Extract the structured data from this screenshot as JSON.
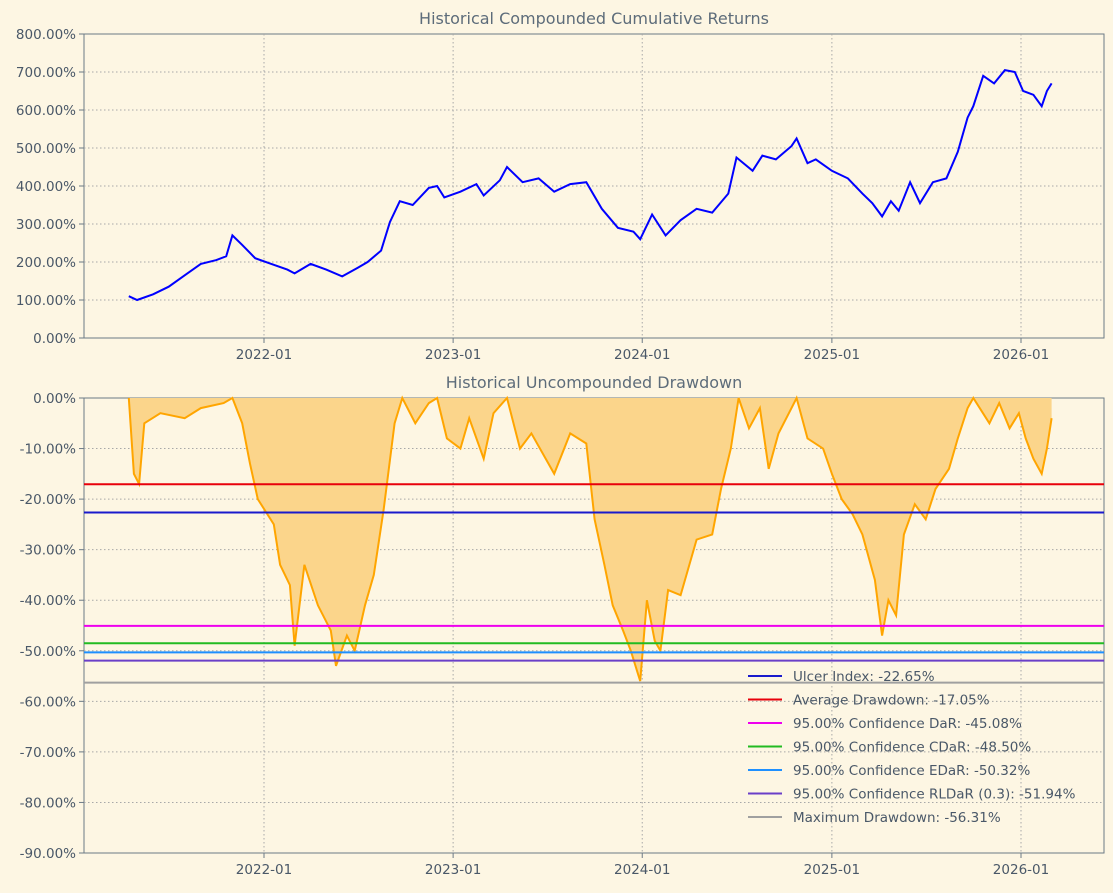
{
  "chart_data": [
    {
      "type": "line",
      "title": "Historical Compounded Cumulative Returns",
      "xlabel": "",
      "ylabel": "",
      "x_ticks": [
        "2022-01",
        "2023-01",
        "2024-01",
        "2025-01",
        "2026-01"
      ],
      "y_ticks": [
        "0.00%",
        "100.00%",
        "200.00%",
        "300.00%",
        "400.00%",
        "500.00%",
        "600.00%",
        "700.00%",
        "800.00%"
      ],
      "ylim": [
        0,
        800
      ],
      "grid": true,
      "series": [
        {
          "name": "Cumulative Returns",
          "color": "#0000ff",
          "points": [
            [
              "2021-04-15",
              110
            ],
            [
              "2021-05-01",
              100
            ],
            [
              "2021-06-01",
              115
            ],
            [
              "2021-07-01",
              135
            ],
            [
              "2021-08-01",
              165
            ],
            [
              "2021-09-01",
              195
            ],
            [
              "2021-10-01",
              205
            ],
            [
              "2021-10-20",
              215
            ],
            [
              "2021-11-01",
              270
            ],
            [
              "2021-11-20",
              245
            ],
            [
              "2021-12-15",
              210
            ],
            [
              "2022-01-15",
              195
            ],
            [
              "2022-02-15",
              180
            ],
            [
              "2022-03-01",
              170
            ],
            [
              "2022-04-01",
              195
            ],
            [
              "2022-05-01",
              180
            ],
            [
              "2022-06-01",
              162
            ],
            [
              "2022-07-01",
              185
            ],
            [
              "2022-07-20",
              200
            ],
            [
              "2022-08-15",
              230
            ],
            [
              "2022-09-01",
              305
            ],
            [
              "2022-09-20",
              360
            ],
            [
              "2022-10-15",
              350
            ],
            [
              "2022-11-15",
              395
            ],
            [
              "2022-12-01",
              400
            ],
            [
              "2022-12-15",
              370
            ],
            [
              "2023-01-15",
              385
            ],
            [
              "2023-02-15",
              405
            ],
            [
              "2023-03-01",
              375
            ],
            [
              "2023-04-01",
              415
            ],
            [
              "2023-04-15",
              450
            ],
            [
              "2023-05-15",
              410
            ],
            [
              "2023-06-15",
              420
            ],
            [
              "2023-07-15",
              385
            ],
            [
              "2023-08-15",
              405
            ],
            [
              "2023-09-15",
              410
            ],
            [
              "2023-10-15",
              340
            ],
            [
              "2023-11-15",
              290
            ],
            [
              "2023-12-15",
              280
            ],
            [
              "2023-12-28",
              260
            ],
            [
              "2024-01-20",
              325
            ],
            [
              "2024-02-15",
              270
            ],
            [
              "2024-03-15",
              310
            ],
            [
              "2024-04-15",
              340
            ],
            [
              "2024-05-15",
              330
            ],
            [
              "2024-06-15",
              380
            ],
            [
              "2024-07-01",
              475
            ],
            [
              "2024-08-01",
              440
            ],
            [
              "2024-08-20",
              480
            ],
            [
              "2024-09-15",
              470
            ],
            [
              "2024-10-15",
              505
            ],
            [
              "2024-10-25",
              525
            ],
            [
              "2024-11-15",
              460
            ],
            [
              "2024-12-01",
              470
            ],
            [
              "2025-01-01",
              440
            ],
            [
              "2025-02-01",
              420
            ],
            [
              "2025-03-01",
              380
            ],
            [
              "2025-03-20",
              355
            ],
            [
              "2025-04-08",
              320
            ],
            [
              "2025-04-25",
              360
            ],
            [
              "2025-05-10",
              335
            ],
            [
              "2025-06-01",
              410
            ],
            [
              "2025-06-20",
              355
            ],
            [
              "2025-07-15",
              410
            ],
            [
              "2025-08-10",
              420
            ],
            [
              "2025-09-01",
              490
            ],
            [
              "2025-09-20",
              580
            ],
            [
              "2025-10-01",
              610
            ],
            [
              "2025-10-20",
              690
            ],
            [
              "2025-11-10",
              670
            ],
            [
              "2025-12-01",
              705
            ],
            [
              "2025-12-20",
              700
            ],
            [
              "2026-01-05",
              650
            ],
            [
              "2026-01-25",
              640
            ],
            [
              "2026-02-10",
              610
            ],
            [
              "2026-02-20",
              650
            ],
            [
              "2026-03-01",
              670
            ]
          ]
        }
      ]
    },
    {
      "type": "area",
      "title": "Historical Uncompounded Drawdown",
      "xlabel": "",
      "ylabel": "",
      "x_ticks": [
        "2022-01",
        "2023-01",
        "2024-01",
        "2025-01",
        "2026-01"
      ],
      "y_ticks": [
        "0.00%",
        "-10.00%",
        "-20.00%",
        "-30.00%",
        "-40.00%",
        "-50.00%",
        "-60.00%",
        "-70.00%",
        "-80.00%",
        "-90.00%"
      ],
      "ylim": [
        -90,
        0
      ],
      "grid": true,
      "legend_position": "lower-right",
      "series": [
        {
          "name": "Drawdown",
          "color": "#ffa500",
          "fill": "#fbd58b",
          "points": [
            [
              "2021-04-15",
              0
            ],
            [
              "2021-04-25",
              -15
            ],
            [
              "2021-05-05",
              -17
            ],
            [
              "2021-05-15",
              -5
            ],
            [
              "2021-06-15",
              -3
            ],
            [
              "2021-08-01",
              -4
            ],
            [
              "2021-09-01",
              -2
            ],
            [
              "2021-10-15",
              -1
            ],
            [
              "2021-11-01",
              0
            ],
            [
              "2021-11-20",
              -5
            ],
            [
              "2021-12-05",
              -13
            ],
            [
              "2021-12-20",
              -20
            ],
            [
              "2022-01-20",
              -25
            ],
            [
              "2022-02-01",
              -33
            ],
            [
              "2022-02-20",
              -37
            ],
            [
              "2022-03-01",
              -49
            ],
            [
              "2022-03-20",
              -33
            ],
            [
              "2022-04-15",
              -41
            ],
            [
              "2022-05-10",
              -46
            ],
            [
              "2022-05-20",
              -53
            ],
            [
              "2022-06-10",
              -47
            ],
            [
              "2022-06-25",
              -50
            ],
            [
              "2022-07-15",
              -41
            ],
            [
              "2022-08-01",
              -35
            ],
            [
              "2022-08-20",
              -22
            ],
            [
              "2022-09-10",
              -5
            ],
            [
              "2022-09-25",
              0
            ],
            [
              "2022-10-20",
              -5
            ],
            [
              "2022-11-15",
              -1
            ],
            [
              "2022-12-01",
              0
            ],
            [
              "2022-12-20",
              -8
            ],
            [
              "2023-01-15",
              -10
            ],
            [
              "2023-02-01",
              -4
            ],
            [
              "2023-03-01",
              -12
            ],
            [
              "2023-03-20",
              -3
            ],
            [
              "2023-04-15",
              0
            ],
            [
              "2023-05-10",
              -10
            ],
            [
              "2023-06-01",
              -7
            ],
            [
              "2023-07-15",
              -15
            ],
            [
              "2023-08-15",
              -7
            ],
            [
              "2023-09-15",
              -9
            ],
            [
              "2023-10-01",
              -24
            ],
            [
              "2023-10-20",
              -33
            ],
            [
              "2023-11-05",
              -41
            ],
            [
              "2023-11-25",
              -46
            ],
            [
              "2023-12-10",
              -50
            ],
            [
              "2023-12-28",
              -56
            ],
            [
              "2024-01-10",
              -40
            ],
            [
              "2024-01-25",
              -48
            ],
            [
              "2024-02-05",
              -50
            ],
            [
              "2024-02-20",
              -38
            ],
            [
              "2024-03-15",
              -39
            ],
            [
              "2024-04-15",
              -28
            ],
            [
              "2024-05-15",
              -27
            ],
            [
              "2024-06-01",
              -18
            ],
            [
              "2024-06-20",
              -10
            ],
            [
              "2024-07-05",
              0
            ],
            [
              "2024-07-25",
              -6
            ],
            [
              "2024-08-15",
              -2
            ],
            [
              "2024-09-01",
              -14
            ],
            [
              "2024-09-20",
              -7
            ],
            [
              "2024-10-15",
              -2
            ],
            [
              "2024-10-25",
              0
            ],
            [
              "2024-11-15",
              -8
            ],
            [
              "2024-12-15",
              -10
            ],
            [
              "2025-01-01",
              -15
            ],
            [
              "2025-01-20",
              -20
            ],
            [
              "2025-02-10",
              -23
            ],
            [
              "2025-03-01",
              -27
            ],
            [
              "2025-03-25",
              -36
            ],
            [
              "2025-04-08",
              -47
            ],
            [
              "2025-04-20",
              -40
            ],
            [
              "2025-05-05",
              -43
            ],
            [
              "2025-05-20",
              -27
            ],
            [
              "2025-06-10",
              -21
            ],
            [
              "2025-07-01",
              -24
            ],
            [
              "2025-07-20",
              -18
            ],
            [
              "2025-08-15",
              -14
            ],
            [
              "2025-09-01",
              -8
            ],
            [
              "2025-09-20",
              -2
            ],
            [
              "2025-10-01",
              0
            ],
            [
              "2025-11-01",
              -5
            ],
            [
              "2025-11-20",
              -1
            ],
            [
              "2025-12-10",
              -6
            ],
            [
              "2025-12-28",
              -3
            ],
            [
              "2026-01-10",
              -8
            ],
            [
              "2026-01-25",
              -12
            ],
            [
              "2026-02-10",
              -15
            ],
            [
              "2026-02-20",
              -10
            ],
            [
              "2026-03-01",
              -4
            ]
          ]
        }
      ],
      "reference_lines": [
        {
          "label": "Ulcer Index: -22.65%",
          "value": -22.65,
          "color": "#1a1acc"
        },
        {
          "label": "Average Drawdown: -17.05%",
          "value": -17.05,
          "color": "#e8000b"
        },
        {
          "label": "95.00% Confidence DaR: -45.08%",
          "value": -45.08,
          "color": "#ee00ee"
        },
        {
          "label": "95.00% Confidence CDaR: -48.50%",
          "value": -48.5,
          "color": "#22bb22"
        },
        {
          "label": "95.00% Confidence EDaR: -50.32%",
          "value": -50.32,
          "color": "#1e90ff"
        },
        {
          "label": "95.00% Confidence RLDaR (0.3): -51.94%",
          "value": -51.94,
          "color": "#6a3fc8"
        },
        {
          "label": "Maximum Drawdown: -56.31%",
          "value": -56.31,
          "color": "#a0a0a0"
        }
      ]
    }
  ]
}
